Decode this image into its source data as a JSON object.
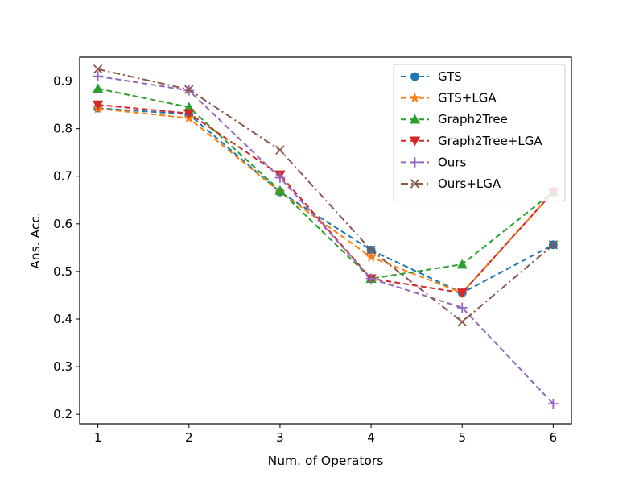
{
  "chart_data": {
    "type": "line",
    "title": "",
    "xlabel": "Num. of Operators",
    "ylabel": "Ans. Acc.",
    "x": [
      1,
      2,
      3,
      4,
      5,
      6
    ],
    "xlim": [
      0.8,
      6.2
    ],
    "ylim": [
      0.18,
      0.95
    ],
    "xticks": [
      1,
      2,
      3,
      4,
      5,
      6
    ],
    "yticks": [
      0.2,
      0.3,
      0.4,
      0.5,
      0.6,
      0.7,
      0.8,
      0.9
    ],
    "ytick_labels": [
      "0.2",
      "0.3",
      "0.4",
      "0.5",
      "0.6",
      "0.7",
      "0.8",
      "0.9"
    ],
    "xtick_labels": [
      "1",
      "2",
      "3",
      "4",
      "5",
      "6"
    ],
    "grid": false,
    "legend_position": "top-right",
    "series": [
      {
        "name": "GTS",
        "color": "#1f77b4",
        "marker": "circle",
        "dash": "dashed",
        "values": [
          0.843,
          0.83,
          0.667,
          0.545,
          0.455,
          0.556
        ]
      },
      {
        "name": "GTS+LGA",
        "color": "#ff7f0e",
        "marker": "star",
        "dash": "dashed",
        "values": [
          0.842,
          0.822,
          0.667,
          0.53,
          0.455,
          0.667
        ]
      },
      {
        "name": "Graph2Tree",
        "color": "#2ca02c",
        "marker": "triangle-up",
        "dash": "dashed",
        "values": [
          0.884,
          0.845,
          0.67,
          0.485,
          0.515,
          0.667
        ]
      },
      {
        "name": "Graph2Tree+LGA",
        "color": "#d62728",
        "marker": "triangle-down",
        "dash": "dashed",
        "values": [
          0.85,
          0.832,
          0.703,
          0.485,
          0.455,
          0.667
        ]
      },
      {
        "name": "Ours",
        "color": "#9467bd",
        "marker": "plus",
        "dash": "dashed",
        "values": [
          0.91,
          0.88,
          0.697,
          0.485,
          0.424,
          0.222
        ]
      },
      {
        "name": "Ours+LGA",
        "color": "#8c564b",
        "marker": "x",
        "dash": "dashdot",
        "values": [
          0.925,
          0.882,
          0.755,
          0.545,
          0.394,
          0.556
        ]
      }
    ]
  }
}
